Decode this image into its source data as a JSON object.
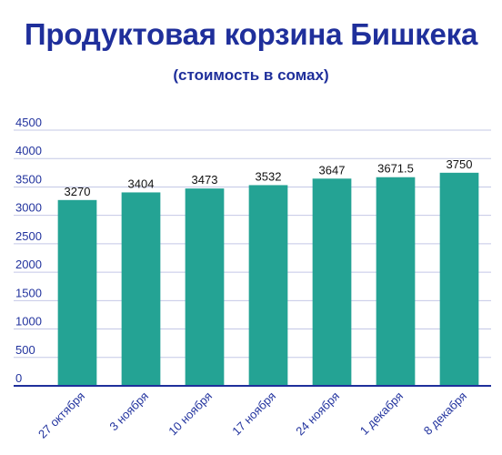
{
  "colors": {
    "title": "#1f2f9b",
    "axis_text": "#22339e",
    "bar": "#24a394",
    "grid": "#c4c8e6",
    "baseline": "#1f2f9b",
    "label": "#111111"
  },
  "chart_data": {
    "type": "bar",
    "title": "Продуктовая корзина Бишкека",
    "subtitle": "(стоимость в сомах)",
    "categories": [
      "27 октября",
      "3 ноября",
      "10 ноября",
      "17 ноября",
      "24 ноября",
      "1 декабря",
      "8 декабря"
    ],
    "values": [
      3270,
      3404,
      3473,
      3532,
      3647,
      3671.5,
      3750
    ],
    "data_labels": [
      "3270",
      "3404",
      "3473",
      "3532",
      "3647",
      "3671.5",
      "3750"
    ],
    "ylim": [
      0,
      4500
    ],
    "yticks": [
      0,
      500,
      1000,
      1500,
      2000,
      2500,
      3000,
      3500,
      4000,
      4500
    ],
    "ytick_labels": [
      "0",
      "500",
      "1000",
      "1500",
      "2000",
      "2500",
      "3000",
      "3500",
      "4000",
      "4500"
    ],
    "grid": true,
    "legend": "none",
    "xlabel": "",
    "ylabel": ""
  }
}
